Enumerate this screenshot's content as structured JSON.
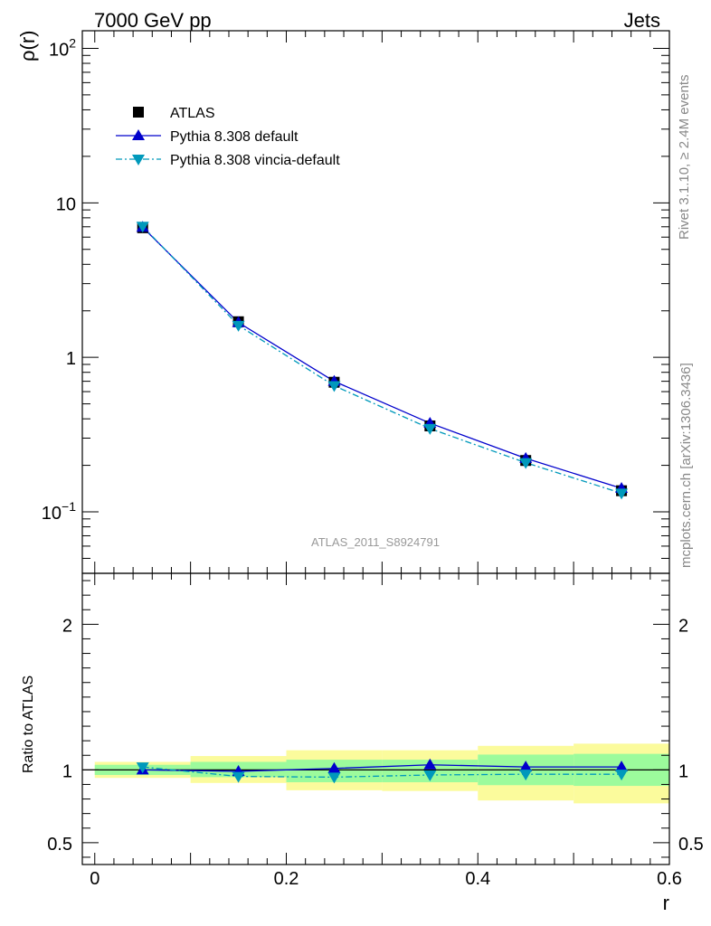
{
  "header": {
    "left": "7000 GeV pp",
    "right": "Jets"
  },
  "side_text": {
    "rivet": "Rivet 3.1.10, ≥ 2.4M events",
    "site": "mcplots.cern.ch [arXiv:1306.3436]"
  },
  "watermark": "ATLAS_2011_S8924791",
  "colors": {
    "atlas": "#000000",
    "pythia_default": "#0000cc",
    "pythia_vincia": "#0099bb",
    "band_outer": "#fbfb9c",
    "band_inner": "#9cfb9c"
  },
  "chart_data": [
    {
      "type": "line",
      "panel": "main",
      "ylabel": "ρ(r)",
      "yscale": "log",
      "ylim": [
        0.04,
        130
      ],
      "xlim": [
        -0.013,
        0.6
      ],
      "yticks": [
        {
          "value": 0.1,
          "base": "10",
          "exp": "−1"
        },
        {
          "value": 1,
          "base": "1",
          "exp": ""
        },
        {
          "value": 10,
          "base": "10",
          "exp": ""
        },
        {
          "value": 100,
          "base": "10",
          "exp": "2"
        }
      ],
      "legend_position": "top-left",
      "x": [
        0.05,
        0.15,
        0.25,
        0.35,
        0.45,
        0.55
      ],
      "series": [
        {
          "name": "ATLAS",
          "values": [
            6.9,
            1.7,
            0.69,
            0.36,
            0.215,
            0.137
          ],
          "marker": "square"
        },
        {
          "name": "Pythia 8.308 default",
          "values": [
            6.95,
            1.68,
            0.7,
            0.375,
            0.222,
            0.142
          ],
          "marker": "triangle-up"
        },
        {
          "name": "Pythia 8.308 vincia-default",
          "values": [
            7.05,
            1.61,
            0.655,
            0.346,
            0.208,
            0.132
          ],
          "marker": "triangle-down"
        }
      ]
    },
    {
      "type": "line",
      "panel": "ratio",
      "ylabel": "Ratio to ATLAS",
      "xlabel": "r",
      "ylim": [
        0.35,
        2.35
      ],
      "xlim": [
        -0.013,
        0.6
      ],
      "yticks": [
        {
          "value": 0.5,
          "label": "0.5"
        },
        {
          "value": 1,
          "label": "1"
        },
        {
          "value": 2,
          "label": "2"
        }
      ],
      "xticks": [
        {
          "value": 0,
          "label": "0"
        },
        {
          "value": 0.2,
          "label": "0.2"
        },
        {
          "value": 0.4,
          "label": "0.4"
        },
        {
          "value": 0.6,
          "label": "0.6"
        }
      ],
      "bands": [
        {
          "x0": 0.0,
          "x1": 0.1,
          "outer": [
            0.945,
            1.055
          ],
          "inner": [
            0.965,
            1.035
          ]
        },
        {
          "x0": 0.1,
          "x1": 0.2,
          "outer": [
            0.91,
            1.095
          ],
          "inner": [
            0.95,
            1.055
          ]
        },
        {
          "x0": 0.2,
          "x1": 0.3,
          "outer": [
            0.86,
            1.135
          ],
          "inner": [
            0.915,
            1.07
          ]
        },
        {
          "x0": 0.3,
          "x1": 0.4,
          "outer": [
            0.855,
            1.135
          ],
          "inner": [
            0.915,
            1.07
          ]
        },
        {
          "x0": 0.4,
          "x1": 0.5,
          "outer": [
            0.79,
            1.165
          ],
          "inner": [
            0.895,
            1.105
          ]
        },
        {
          "x0": 0.5,
          "x1": 0.6,
          "outer": [
            0.77,
            1.18
          ],
          "inner": [
            0.89,
            1.11
          ]
        }
      ],
      "x": [
        0.05,
        0.15,
        0.25,
        0.35,
        0.45,
        0.55
      ],
      "series": [
        {
          "name": "Pythia 8.308 default",
          "values": [
            1.0,
            0.99,
            1.01,
            1.035,
            1.02,
            1.02
          ],
          "marker": "triangle-up"
        },
        {
          "name": "Pythia 8.308 vincia-default",
          "values": [
            1.02,
            0.955,
            0.95,
            0.965,
            0.97,
            0.97
          ],
          "marker": "triangle-down"
        }
      ]
    }
  ]
}
